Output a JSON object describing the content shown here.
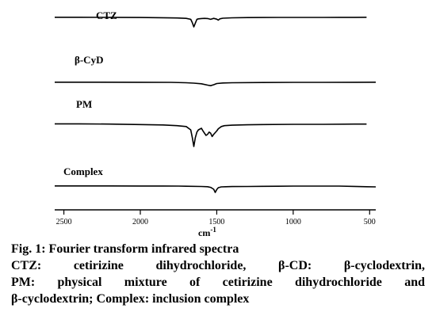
{
  "chart_data": {
    "type": "line",
    "xlabel": "cm",
    "xlabel_sup": "-1",
    "x_ticks": [
      2500,
      2000,
      1500,
      1000,
      500
    ],
    "x_tick_labels": [
      "2500",
      "2000",
      "1500",
      "1000",
      "500"
    ],
    "x_reversed": true,
    "xlim": [
      2560,
      460
    ],
    "series": [
      {
        "name": "CTZ",
        "x": [
          2560,
          2400,
          2200,
          2000,
          1850,
          1760,
          1700,
          1670,
          1660,
          1650,
          1640,
          1630,
          1620,
          1600,
          1580,
          1560,
          1540,
          1520,
          1500,
          1490,
          1480,
          1460,
          1400,
          1300,
          1200,
          1100,
          1000,
          900,
          800,
          700,
          600,
          520
        ],
        "y": [
          0.02,
          0.02,
          0.01,
          -0.01,
          -0.03,
          -0.06,
          -0.1,
          -0.2,
          -0.55,
          -1.0,
          -0.6,
          -0.2,
          -0.15,
          -0.12,
          -0.1,
          -0.12,
          -0.2,
          -0.1,
          -0.18,
          -0.28,
          -0.15,
          -0.08,
          -0.04,
          -0.02,
          -0.01,
          0.0,
          0.0,
          0.0,
          0.0,
          0.01,
          0.01,
          0.02
        ]
      },
      {
        "name": "β-CyD",
        "x": [
          2560,
          2300,
          2000,
          1800,
          1700,
          1650,
          1600,
          1560,
          1540,
          1520,
          1500,
          1460,
          1400,
          1200,
          1000,
          800,
          600,
          460
        ],
        "y": [
          0.02,
          0.02,
          0.01,
          0.0,
          -0.05,
          -0.1,
          -0.18,
          -0.35,
          -0.42,
          -0.3,
          -0.15,
          -0.08,
          -0.05,
          -0.02,
          0.0,
          0.0,
          0.01,
          0.02
        ]
      },
      {
        "name": "PM",
        "x": [
          2560,
          2400,
          2200,
          2000,
          1850,
          1760,
          1700,
          1670,
          1660,
          1650,
          1640,
          1630,
          1620,
          1600,
          1590,
          1570,
          1560,
          1550,
          1540,
          1530,
          1520,
          1500,
          1490,
          1470,
          1450,
          1400,
          1300,
          1200,
          1000,
          800,
          600,
          520
        ],
        "y": [
          0.02,
          0.02,
          0.01,
          -0.01,
          -0.03,
          -0.06,
          -0.1,
          -0.25,
          -0.6,
          -1.0,
          -0.6,
          -0.35,
          -0.25,
          -0.18,
          -0.3,
          -0.5,
          -0.45,
          -0.35,
          -0.4,
          -0.55,
          -0.45,
          -0.3,
          -0.2,
          -0.1,
          -0.06,
          -0.04,
          -0.02,
          -0.01,
          0.0,
          0.0,
          0.01,
          0.01
        ]
      },
      {
        "name": "Complex",
        "x": [
          2560,
          2400,
          2200,
          2000,
          1850,
          1750,
          1700,
          1600,
          1560,
          1540,
          1520,
          1510,
          1500,
          1490,
          1470,
          1440,
          1400,
          1300,
          1200,
          1100,
          1000,
          900,
          800,
          700,
          600,
          520,
          460
        ],
        "y": [
          0.02,
          0.02,
          0.02,
          0.01,
          0.01,
          0.0,
          -0.02,
          -0.06,
          -0.1,
          -0.2,
          -0.5,
          -1.0,
          -0.55,
          -0.25,
          -0.12,
          -0.1,
          -0.08,
          -0.06,
          -0.04,
          -0.02,
          0.0,
          0.0,
          0.0,
          0.0,
          -0.05,
          -0.1,
          -0.12
        ]
      }
    ]
  },
  "caption": {
    "line1": "Fig. 1: Fourier transform infrared spectra",
    "line2": "CTZ: cetirizine dihydrochloride, β-CD: β-cyclodextrin,",
    "line3": "PM: physical mixture of cetirizine dihydrochloride and",
    "line4": "β-cyclodextrin; Complex: inclusion complex"
  }
}
